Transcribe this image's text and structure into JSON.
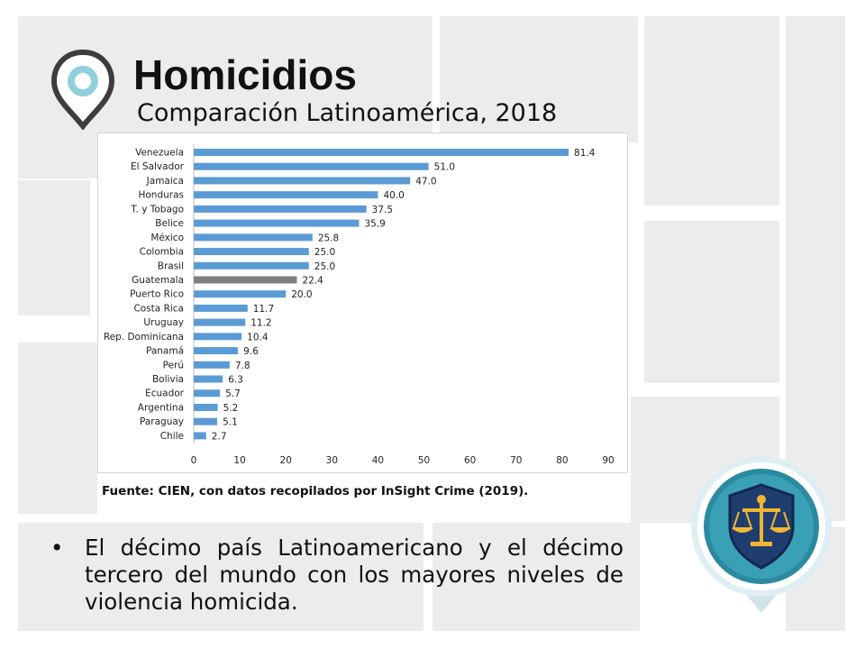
{
  "header": {
    "title": "Homicidios",
    "subtitle": "Comparación Latinoamérica, 2018"
  },
  "icons": {
    "location_pin": "map-pin-icon",
    "badge": "justice-scale-badge-icon"
  },
  "colors": {
    "bar_default": "#5b9bd5",
    "bar_highlight": "#7f7f7f",
    "pin_teal": "#8fd0dc",
    "badge_navy": "#1f3d6e",
    "badge_gold": "#f2b632"
  },
  "chart_data": {
    "type": "bar",
    "orientation": "horizontal",
    "title": "",
    "xlabel": "",
    "ylabel": "",
    "xlim": [
      0,
      90
    ],
    "xticks": [
      0,
      10,
      20,
      30,
      40,
      50,
      60,
      70,
      80,
      90
    ],
    "grid": false,
    "highlight": "Guatemala",
    "categories": [
      "Venezuela",
      "El Salvador",
      "Jamaica",
      "Honduras",
      "T. y Tobago",
      "Belice",
      "México",
      "Colombia",
      "Brasil",
      "Guatemala",
      "Puerto Rico",
      "Costa Rica",
      "Uruguay",
      "Rep. Dominicana",
      "Panamá",
      "Perú",
      "Bolivia",
      "Ecuador",
      "Argentina",
      "Paraguay",
      "Chile"
    ],
    "values": [
      81.4,
      51.0,
      47.0,
      40.0,
      37.5,
      35.9,
      25.8,
      25.0,
      25.0,
      22.4,
      20.0,
      11.7,
      11.2,
      10.4,
      9.6,
      7.8,
      6.3,
      5.7,
      5.2,
      5.1,
      2.7
    ],
    "value_labels": [
      "81.4",
      "51.0",
      "47.0",
      "40.0",
      "37.5",
      "35.9",
      "25.8",
      "25.0",
      "25.0",
      "22.4",
      "20.0",
      "11.7",
      "11.2",
      "10.4",
      "9.6",
      "7.8",
      "6.3",
      "5.7",
      "5.2",
      "5.1",
      "2.7"
    ]
  },
  "source": "Fuente: CIEN, con datos recopilados por InSight Crime (2019).",
  "bullet": {
    "marker": "•",
    "text": "El décimo país Latinoamericano y el décimo tercero del mundo con los mayores niveles de violencia homicida."
  }
}
